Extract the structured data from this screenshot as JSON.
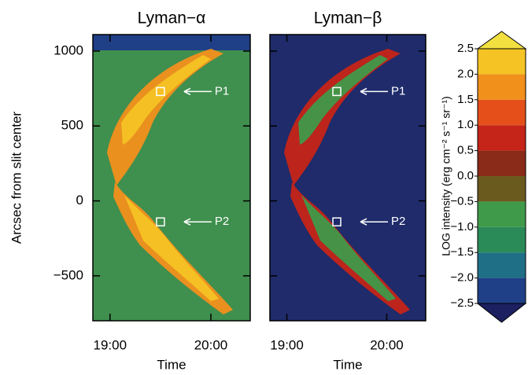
{
  "chart_data": [
    {
      "type": "heatmap",
      "title": "Lyman−α",
      "ylabel": "Arcsec from slit center",
      "xlabel": "Time",
      "xlim": [
        18.83,
        20.39
      ],
      "xticks": [
        {
          "value": 19,
          "label": "19:00"
        },
        {
          "value": 20,
          "label": "20:00"
        }
      ],
      "ylim": [
        -800,
        1110
      ],
      "yticks": [
        {
          "value": -500,
          "label": "−500"
        },
        0,
        500,
        1000
      ],
      "show_ytick_labels": true,
      "markers": [
        {
          "label": "P1",
          "x": 19.5,
          "y": 730
        },
        {
          "label": "P2",
          "x": 19.5,
          "y": -140
        }
      ],
      "background": "#3f8f4e",
      "layers": [
        10,
        9
      ],
      "top_strip": true
    },
    {
      "type": "heatmap",
      "title": "Lyman−β",
      "xlabel": "Time",
      "xlim": [
        18.83,
        20.39
      ],
      "xticks": [
        {
          "value": 19,
          "label": "19:00"
        },
        {
          "value": 20,
          "label": "20:00"
        }
      ],
      "ylim": [
        -800,
        1110
      ],
      "yticks": [
        -500,
        0,
        500,
        1000
      ],
      "show_ytick_labels": false,
      "markers": [
        {
          "label": "P1",
          "x": 19.5,
          "y": 730
        },
        {
          "label": "P2",
          "x": 19.5,
          "y": -140
        }
      ],
      "background": "#1f2b6a",
      "layers": [
        4,
        7
      ],
      "top_strip": false
    },
    {
      "type": "colorbar",
      "label": "LOG intensity (erg cm⁻² s⁻¹ sr⁻¹)",
      "ylim": [
        -2.5,
        2.5
      ],
      "yticks": [
        {
          "value": -2.5,
          "label": "−2.5"
        },
        {
          "value": -2,
          "label": "−2.0"
        },
        {
          "value": -1.5,
          "label": "−1.5"
        },
        {
          "value": -1,
          "label": "−1.0"
        },
        {
          "value": -0.5,
          "label": "−0.5"
        },
        {
          "value": 0,
          "label": "0.0"
        },
        {
          "value": 0.5,
          "label": "0.5"
        },
        {
          "value": 1,
          "label": "1.0"
        },
        {
          "value": 1.5,
          "label": "1.5"
        },
        {
          "value": 2,
          "label": "2.0"
        },
        {
          "value": 2.5,
          "label": "2.5"
        }
      ],
      "colors": [
        "#1c2060",
        "#1f3f86",
        "#1f6f86",
        "#2a8a58",
        "#3f9a4a",
        "#6b5a1e",
        "#8a2a18",
        "#c52418",
        "#e5501a",
        "#f2901c",
        "#f5c324",
        "#f2e040"
      ]
    }
  ]
}
